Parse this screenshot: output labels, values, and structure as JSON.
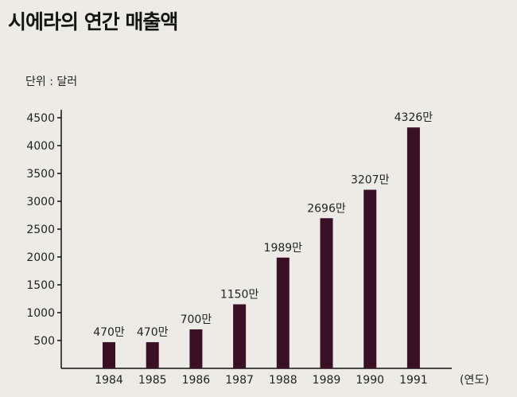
{
  "title": "시에라의 연간 매출액",
  "chart_data": {
    "type": "bar",
    "title": "시에라의 연간 매출액",
    "unit_label": "단위 : 달러",
    "xlabel": "(연도)",
    "ylabel": "",
    "categories": [
      "1984",
      "1985",
      "1986",
      "1987",
      "1988",
      "1989",
      "1990",
      "1991"
    ],
    "values": [
      470,
      470,
      700,
      1150,
      1989,
      2696,
      3207,
      4326
    ],
    "data_labels": [
      "470만",
      "470만",
      "700만",
      "1150만",
      "1989만",
      "2696만",
      "3207만",
      "4326만"
    ],
    "yticks": [
      500,
      1000,
      1500,
      2000,
      2500,
      3000,
      3500,
      4000,
      4500
    ],
    "ylim": [
      0,
      4500
    ],
    "grid": false,
    "bar_color": "#3a1026"
  }
}
